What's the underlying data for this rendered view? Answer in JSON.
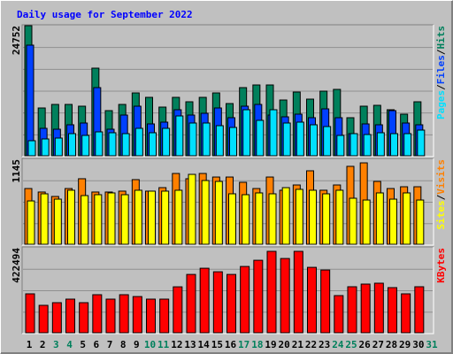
{
  "chart_data": {
    "type": "bar",
    "title": "Daily usage for September 2022",
    "legend_separator": "/",
    "categories": [
      "1",
      "2",
      "3",
      "4",
      "5",
      "6",
      "7",
      "8",
      "9",
      "10",
      "11",
      "12",
      "13",
      "14",
      "15",
      "16",
      "17",
      "18",
      "19",
      "20",
      "21",
      "22",
      "23",
      "24",
      "25",
      "26",
      "27",
      "28",
      "29",
      "30",
      "31"
    ],
    "category_colors": [
      "#000000",
      "#000000",
      "#00805c",
      "#00805c",
      "#000000",
      "#000000",
      "#000000",
      "#000000",
      "#000000",
      "#00805c",
      "#00805c",
      "#000000",
      "#000000",
      "#000000",
      "#000000",
      "#000000",
      "#00805c",
      "#00805c",
      "#000000",
      "#000000",
      "#000000",
      "#000000",
      "#000000",
      "#00805c",
      "#00805c",
      "#000000",
      "#000000",
      "#000000",
      "#000000",
      "#000000",
      "#00805c"
    ],
    "panels": [
      {
        "ylim": [
          0,
          24752
        ],
        "yticks": [
          24752
        ],
        "series": [
          {
            "name": "Hits",
            "color": "#00805c",
            "values": [
              24752,
              9093,
              9766,
              9766,
              9430,
              16670,
              8587,
              9766,
              11955,
              11113,
              9261,
              11113,
              10271,
              11113,
              11955,
              9934,
              12965,
              13470,
              13470,
              10608,
              12123,
              10776,
              12292,
              12629,
              7240,
              9430,
              9598,
              8756,
              7914,
              10271,
              null
            ]
          },
          {
            "name": "Files",
            "color": "#0040ff",
            "values": [
              21048,
              5220,
              5051,
              5893,
              6230,
              12965,
              5051,
              7745,
              9430,
              6062,
              6398,
              8756,
              7745,
              8082,
              9093,
              7240,
              9430,
              9766,
              7745,
              7408,
              7914,
              7240,
              8924,
              7240,
              4209,
              6062,
              5893,
              8587,
              6230,
              5893,
              null
            ]
          },
          {
            "name": "Pages",
            "color": "#00e0ff",
            "values": [
              2862,
              3199,
              3368,
              4209,
              3873,
              4546,
              4378,
              4209,
              5220,
              4378,
              5220,
              7577,
              6230,
              6230,
              5725,
              5388,
              8756,
              6735,
              8756,
              6230,
              6398,
              5893,
              5557,
              3873,
              4209,
              4041,
              4378,
              4209,
              4209,
              4883,
              null
            ]
          }
        ]
      },
      {
        "ylim": [
          0,
          1145
        ],
        "yticks": [
          1145
        ],
        "series": [
          {
            "name": "Visits",
            "color": "#ff8000",
            "values": [
              751,
              704,
              644,
              751,
              883,
              704,
              704,
              716,
              871,
              716,
              763,
              954,
              883,
              954,
              906,
              906,
              835,
              751,
              906,
              728,
              799,
              990,
              728,
              799,
              1050,
              1097,
              847,
              751,
              775,
              775,
              null
            ]
          },
          {
            "name": "Sites",
            "color": "#ffff00",
            "values": [
              584,
              680,
              608,
              728,
              656,
              668,
              692,
              668,
              728,
              716,
              716,
              728,
              942,
              859,
              847,
              680,
              668,
              692,
              680,
              763,
              740,
              728,
              680,
              728,
              620,
              596,
              692,
              608,
              692,
              596,
              null
            ]
          }
        ]
      },
      {
        "ylim": [
          0,
          422494
        ],
        "yticks": [
          422494
        ],
        "series": [
          {
            "name": "KBytes",
            "color": "#ff0000",
            "values": [
              193643,
              136430,
              149633,
              167237,
              149633,
              189242,
              167237,
              189242,
              180039,
              167237,
              167237,
              228448,
              290060,
              320868,
              303264,
              290060,
              329670,
              360478,
              404890,
              369280,
              404890,
              325269,
              312065,
              184841,
              228848,
              242050,
              246451,
              224446,
              193643,
              228848,
              null
            ]
          }
        ]
      }
    ]
  }
}
